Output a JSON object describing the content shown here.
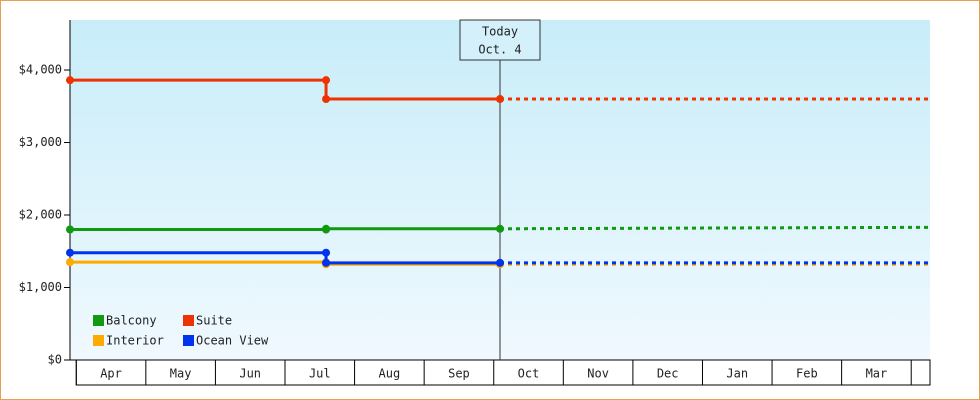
{
  "chart_data": {
    "type": "step-line",
    "months": [
      "Apr",
      "May",
      "Jun",
      "Jul",
      "Aug",
      "Sep",
      "Oct",
      "Nov",
      "Dec",
      "Jan",
      "Feb",
      "Mar"
    ],
    "xlim": [
      -0.09,
      12.27
    ],
    "ylim": [
      0,
      4690
    ],
    "yticks": [
      {
        "value": 0,
        "label": "$0"
      },
      {
        "value": 1000,
        "label": "$1,000"
      },
      {
        "value": 2000,
        "label": "$2,000"
      },
      {
        "value": 3000,
        "label": "$3,000"
      },
      {
        "value": 4000,
        "label": "$4,000"
      }
    ],
    "annotation": {
      "x": 6.09,
      "lines": [
        "Today",
        "Oct. 4"
      ]
    },
    "series": [
      {
        "name": "Balcony",
        "color": "#119911",
        "x": [
          -0.09,
          3.59,
          3.59,
          6.09
        ],
        "values": [
          1800,
          1800,
          1810,
          1810
        ],
        "forecast_x": [
          6.09,
          9.0,
          12.27
        ],
        "forecast_values": [
          1810,
          1820,
          1830
        ]
      },
      {
        "name": "Suite",
        "color": "#ee3300",
        "x": [
          -0.09,
          3.59,
          3.59,
          6.09
        ],
        "values": [
          3860,
          3860,
          3600,
          3600
        ],
        "forecast_x": [
          6.09,
          12.27
        ],
        "forecast_values": [
          3600,
          3600
        ]
      },
      {
        "name": "Interior",
        "color": "#ffaa00",
        "x": [
          -0.09,
          3.59,
          3.59,
          6.09
        ],
        "values": [
          1350,
          1350,
          1320,
          1320
        ],
        "forecast_x": [
          6.09,
          12.27
        ],
        "forecast_values": [
          1320,
          1320
        ]
      },
      {
        "name": "Ocean View",
        "color": "#0033ee",
        "x": [
          -0.09,
          3.59,
          3.59,
          6.09
        ],
        "values": [
          1480,
          1480,
          1340,
          1340
        ],
        "forecast_x": [
          6.09,
          12.27
        ],
        "forecast_values": [
          1340,
          1340
        ]
      }
    ]
  }
}
